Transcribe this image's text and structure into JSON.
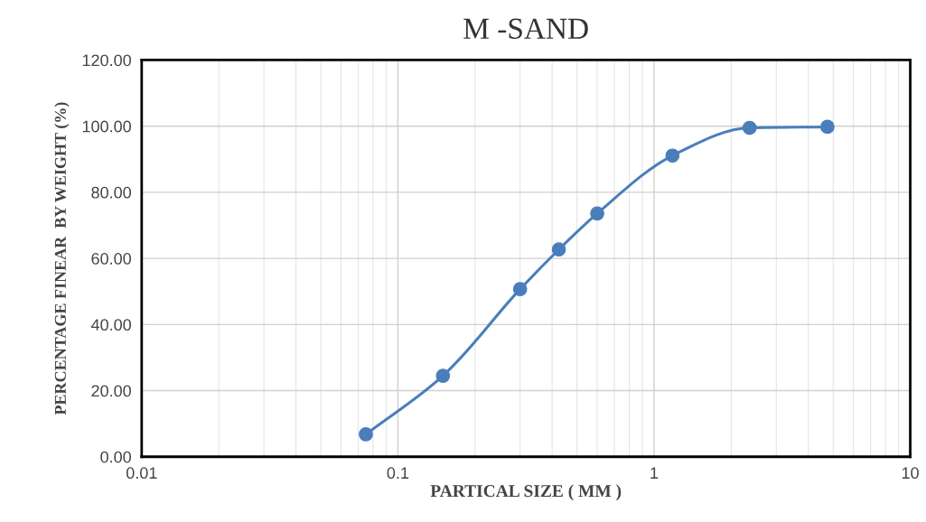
{
  "chart_data": {
    "type": "line",
    "title": "M -SAND",
    "xlabel": "PARTICAL SIZE ( MM )",
    "ylabel": "PERCENTAGE FINEAR  BY WEIGHT (%)",
    "x": [
      0.075,
      0.15,
      0.3,
      0.425,
      0.6,
      1.18,
      2.36,
      4.75
    ],
    "series": [
      {
        "color": "#4a7ebb",
        "values": [
          6.8,
          24.5,
          50.7,
          62.7,
          73.6,
          91.1,
          99.5,
          99.8
        ]
      }
    ],
    "log": "x",
    "xlim": [
      0.01,
      10
    ],
    "xticks": [
      0.01,
      0.1,
      1,
      10
    ],
    "ylim": [
      0,
      120
    ],
    "yticks": [
      {
        "value": 0,
        "label": "0.00"
      },
      {
        "value": 20,
        "label": "20.00"
      },
      {
        "value": 40,
        "label": "40.00"
      },
      {
        "value": 60,
        "label": "60.00"
      },
      {
        "value": 80,
        "label": "80.00"
      },
      {
        "value": 100,
        "label": "100.00"
      },
      {
        "value": 120,
        "label": "120.00"
      }
    ],
    "grid": true,
    "marker": "circle",
    "line_style": "solid"
  }
}
